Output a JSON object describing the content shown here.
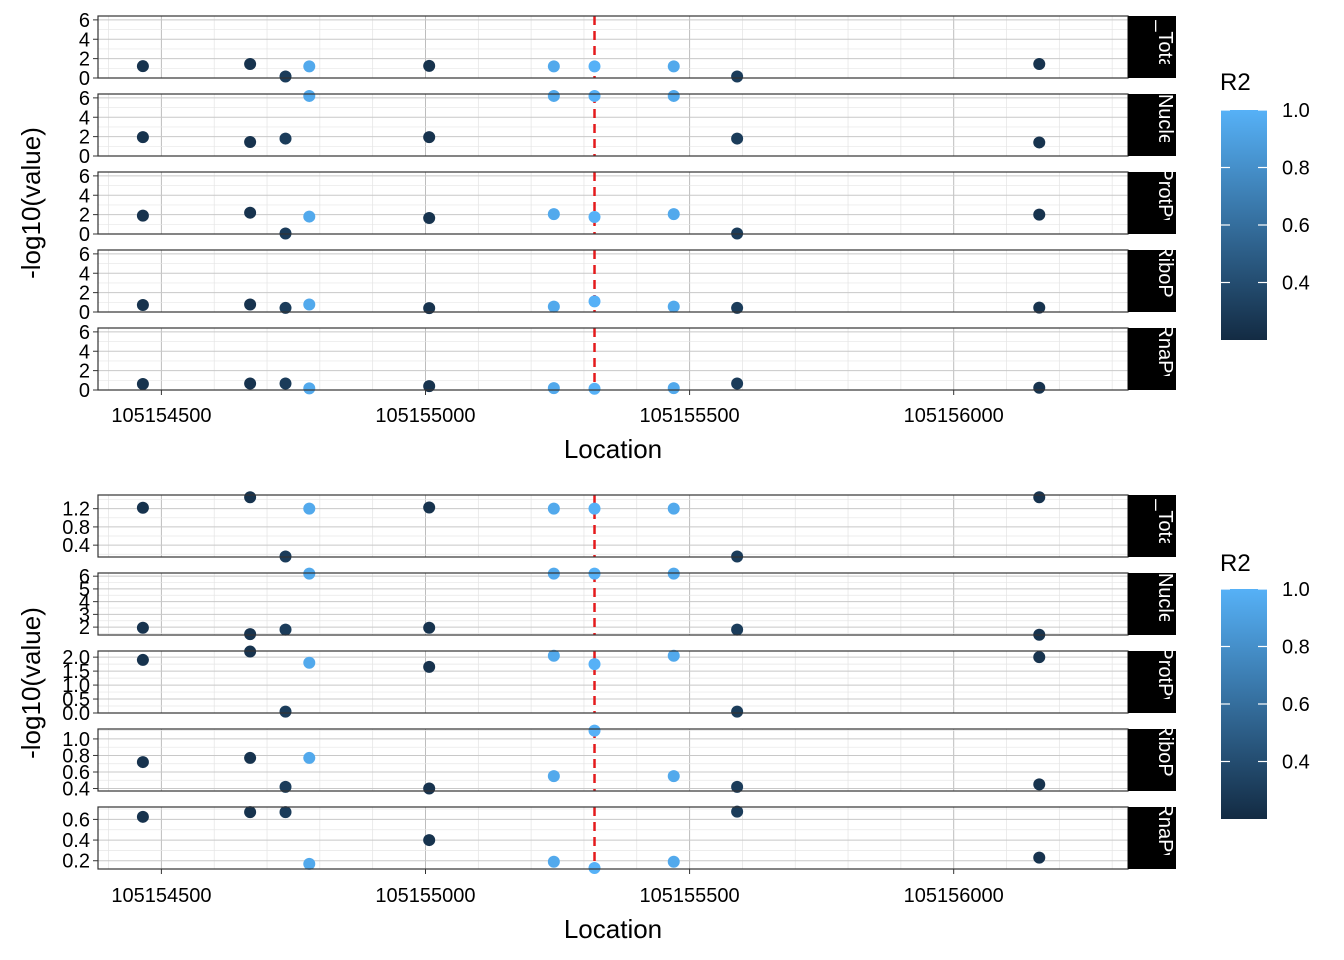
{
  "chart_data": [
    {
      "type": "scatter",
      "facet_by": "trait",
      "xlabel": "Location",
      "ylabel": "-log10(value)",
      "x_ticks": [
        105154500,
        105155000,
        105155500,
        105156000
      ],
      "x_tick_labels": [
        "105154500",
        "105155000",
        "105155500",
        "105156000"
      ],
      "xlim": [
        105154380,
        105156330
      ],
      "vline": {
        "x": 105155320,
        "color": "#e41a1c",
        "style": "dashed"
      },
      "color_scale": {
        "title": "R2",
        "low_color": "#132b43",
        "high_color": "#56b1f7",
        "limits": [
          0.2,
          1.0
        ],
        "breaks": [
          0.4,
          0.6,
          0.8,
          1.0
        ],
        "break_labels": [
          "0.4",
          "0.6",
          "0.8",
          "1.0"
        ]
      },
      "panels": [
        {
          "strip": "_Total",
          "ylim": [
            0,
            6.4
          ],
          "y_ticks": [
            0,
            2,
            4,
            6
          ],
          "y_tick_labels": [
            "0",
            "2",
            "4",
            "6"
          ],
          "points": [
            {
              "x": 105154465,
              "y": 1.22,
              "r2": 0.25
            },
            {
              "x": 105154668,
              "y": 1.45,
              "r2": 0.25
            },
            {
              "x": 105154735,
              "y": 0.15,
              "r2": 0.3
            },
            {
              "x": 105154780,
              "y": 1.2,
              "r2": 0.95
            },
            {
              "x": 105155007,
              "y": 1.25,
              "r2": 0.25
            },
            {
              "x": 105155243,
              "y": 1.2,
              "r2": 0.95
            },
            {
              "x": 105155320,
              "y": 1.2,
              "r2": 1.0
            },
            {
              "x": 105155470,
              "y": 1.2,
              "r2": 0.95
            },
            {
              "x": 105155590,
              "y": 0.15,
              "r2": 0.3
            },
            {
              "x": 105156162,
              "y": 1.45,
              "r2": 0.25
            }
          ]
        },
        {
          "strip": "Nuclea",
          "ylim": [
            0,
            6.4
          ],
          "y_ticks": [
            0,
            2,
            4,
            6
          ],
          "y_tick_labels": [
            "0",
            "2",
            "4",
            "6"
          ],
          "points": [
            {
              "x": 105154465,
              "y": 1.95,
              "r2": 0.25
            },
            {
              "x": 105154668,
              "y": 1.45,
              "r2": 0.25
            },
            {
              "x": 105154735,
              "y": 1.8,
              "r2": 0.3
            },
            {
              "x": 105154780,
              "y": 6.2,
              "r2": 0.95
            },
            {
              "x": 105155007,
              "y": 1.95,
              "r2": 0.25
            },
            {
              "x": 105155243,
              "y": 6.2,
              "r2": 0.95
            },
            {
              "x": 105155320,
              "y": 6.2,
              "r2": 1.0
            },
            {
              "x": 105155470,
              "y": 6.2,
              "r2": 0.95
            },
            {
              "x": 105155590,
              "y": 1.8,
              "r2": 0.3
            },
            {
              "x": 105156162,
              "y": 1.4,
              "r2": 0.25
            }
          ]
        },
        {
          "strip": "ProtPva",
          "ylim": [
            0,
            6.4
          ],
          "y_ticks": [
            0,
            2,
            4,
            6
          ],
          "y_tick_labels": [
            "0",
            "2",
            "4",
            "6"
          ],
          "points": [
            {
              "x": 105154465,
              "y": 1.9,
              "r2": 0.25
            },
            {
              "x": 105154668,
              "y": 2.2,
              "r2": 0.25
            },
            {
              "x": 105154735,
              "y": 0.05,
              "r2": 0.3
            },
            {
              "x": 105154780,
              "y": 1.8,
              "r2": 0.95
            },
            {
              "x": 105155007,
              "y": 1.65,
              "r2": 0.25
            },
            {
              "x": 105155243,
              "y": 2.05,
              "r2": 0.95
            },
            {
              "x": 105155320,
              "y": 1.75,
              "r2": 1.0
            },
            {
              "x": 105155470,
              "y": 2.05,
              "r2": 0.95
            },
            {
              "x": 105155590,
              "y": 0.05,
              "r2": 0.3
            },
            {
              "x": 105156162,
              "y": 2.0,
              "r2": 0.25
            }
          ]
        },
        {
          "strip": "RiboPva",
          "ylim": [
            0,
            6.4
          ],
          "y_ticks": [
            0,
            2,
            4,
            6
          ],
          "y_tick_labels": [
            "0",
            "2",
            "4",
            "6"
          ],
          "points": [
            {
              "x": 105154465,
              "y": 0.72,
              "r2": 0.25
            },
            {
              "x": 105154668,
              "y": 0.77,
              "r2": 0.25
            },
            {
              "x": 105154735,
              "y": 0.42,
              "r2": 0.3
            },
            {
              "x": 105154780,
              "y": 0.77,
              "r2": 0.95
            },
            {
              "x": 105155007,
              "y": 0.4,
              "r2": 0.25
            },
            {
              "x": 105155243,
              "y": 0.55,
              "r2": 0.95
            },
            {
              "x": 105155320,
              "y": 1.1,
              "r2": 1.0
            },
            {
              "x": 105155470,
              "y": 0.55,
              "r2": 0.95
            },
            {
              "x": 105155590,
              "y": 0.42,
              "r2": 0.3
            },
            {
              "x": 105156162,
              "y": 0.45,
              "r2": 0.25
            }
          ]
        },
        {
          "strip": "RnaPva",
          "ylim": [
            0,
            6.4
          ],
          "y_ticks": [
            0,
            2,
            4,
            6
          ],
          "y_tick_labels": [
            "0",
            "2",
            "4",
            "6"
          ],
          "points": [
            {
              "x": 105154465,
              "y": 0.62,
              "r2": 0.25
            },
            {
              "x": 105154668,
              "y": 0.67,
              "r2": 0.25
            },
            {
              "x": 105154735,
              "y": 0.67,
              "r2": 0.3
            },
            {
              "x": 105154780,
              "y": 0.17,
              "r2": 0.95
            },
            {
              "x": 105155007,
              "y": 0.4,
              "r2": 0.25
            },
            {
              "x": 105155243,
              "y": 0.19,
              "r2": 0.95
            },
            {
              "x": 105155320,
              "y": 0.13,
              "r2": 1.0
            },
            {
              "x": 105155470,
              "y": 0.19,
              "r2": 0.95
            },
            {
              "x": 105155590,
              "y": 0.67,
              "r2": 0.3
            },
            {
              "x": 105156162,
              "y": 0.23,
              "r2": 0.25
            }
          ]
        }
      ]
    },
    {
      "type": "scatter",
      "facet_by": "trait",
      "xlabel": "Location",
      "ylabel": "-log10(value)",
      "x_ticks": [
        105154500,
        105155000,
        105155500,
        105156000
      ],
      "x_tick_labels": [
        "105154500",
        "105155000",
        "105155500",
        "105156000"
      ],
      "xlim": [
        105154380,
        105156330
      ],
      "vline": {
        "x": 105155320,
        "color": "#e41a1c",
        "style": "dashed"
      },
      "color_scale": {
        "title": "R2",
        "low_color": "#132b43",
        "high_color": "#56b1f7",
        "limits": [
          0.2,
          1.0
        ],
        "breaks": [
          0.4,
          0.6,
          0.8,
          1.0
        ],
        "break_labels": [
          "0.4",
          "0.6",
          "0.8",
          "1.0"
        ]
      },
      "panels": [
        {
          "strip": "_Total",
          "ylim": [
            0.14,
            1.5
          ],
          "y_ticks": [
            0.4,
            0.8,
            1.2
          ],
          "y_tick_labels": [
            "0.4",
            "0.8",
            "1.2"
          ],
          "points": [
            {
              "x": 105154465,
              "y": 1.22,
              "r2": 0.25
            },
            {
              "x": 105154668,
              "y": 1.45,
              "r2": 0.25
            },
            {
              "x": 105154735,
              "y": 0.15,
              "r2": 0.3
            },
            {
              "x": 105154780,
              "y": 1.2,
              "r2": 0.95
            },
            {
              "x": 105155007,
              "y": 1.225,
              "r2": 0.25
            },
            {
              "x": 105155243,
              "y": 1.2,
              "r2": 0.95
            },
            {
              "x": 105155320,
              "y": 1.2,
              "r2": 1.0
            },
            {
              "x": 105155470,
              "y": 1.2,
              "r2": 0.95
            },
            {
              "x": 105155590,
              "y": 0.15,
              "r2": 0.3
            },
            {
              "x": 105156162,
              "y": 1.45,
              "r2": 0.25
            }
          ]
        },
        {
          "strip": "Nuclea",
          "ylim": [
            1.38,
            6.25
          ],
          "y_ticks": [
            2,
            3,
            4,
            5,
            6
          ],
          "y_tick_labels": [
            "2",
            "3",
            "4",
            "5",
            "6"
          ],
          "points": [
            {
              "x": 105154465,
              "y": 1.95,
              "r2": 0.25
            },
            {
              "x": 105154668,
              "y": 1.45,
              "r2": 0.25
            },
            {
              "x": 105154735,
              "y": 1.8,
              "r2": 0.3
            },
            {
              "x": 105154780,
              "y": 6.2,
              "r2": 0.95
            },
            {
              "x": 105155007,
              "y": 1.95,
              "r2": 0.25
            },
            {
              "x": 105155243,
              "y": 6.2,
              "r2": 0.95
            },
            {
              "x": 105155320,
              "y": 6.2,
              "r2": 1.0
            },
            {
              "x": 105155470,
              "y": 6.2,
              "r2": 0.95
            },
            {
              "x": 105155590,
              "y": 1.8,
              "r2": 0.3
            },
            {
              "x": 105156162,
              "y": 1.4,
              "r2": 0.25
            }
          ]
        },
        {
          "strip": "ProtPva",
          "ylim": [
            0.0,
            2.22
          ],
          "y_ticks": [
            0.0,
            0.5,
            1.0,
            1.5,
            2.0
          ],
          "y_tick_labels": [
            "0.0",
            "0.5",
            "1.0",
            "1.5",
            "2.0"
          ],
          "points": [
            {
              "x": 105154465,
              "y": 1.9,
              "r2": 0.25
            },
            {
              "x": 105154668,
              "y": 2.2,
              "r2": 0.25
            },
            {
              "x": 105154735,
              "y": 0.05,
              "r2": 0.3
            },
            {
              "x": 105154780,
              "y": 1.8,
              "r2": 0.95
            },
            {
              "x": 105155007,
              "y": 1.65,
              "r2": 0.25
            },
            {
              "x": 105155243,
              "y": 2.05,
              "r2": 0.95
            },
            {
              "x": 105155320,
              "y": 1.75,
              "r2": 1.0
            },
            {
              "x": 105155470,
              "y": 2.05,
              "r2": 0.95
            },
            {
              "x": 105155590,
              "y": 0.05,
              "r2": 0.3
            },
            {
              "x": 105156162,
              "y": 2.0,
              "r2": 0.25
            }
          ]
        },
        {
          "strip": "RiboPva",
          "ylim": [
            0.37,
            1.12
          ],
          "y_ticks": [
            0.4,
            0.6,
            0.8,
            1.0
          ],
          "y_tick_labels": [
            "0.4",
            "0.6",
            "0.8",
            "1.0"
          ],
          "points": [
            {
              "x": 105154465,
              "y": 0.72,
              "r2": 0.25
            },
            {
              "x": 105154668,
              "y": 0.77,
              "r2": 0.25
            },
            {
              "x": 105154735,
              "y": 0.42,
              "r2": 0.3
            },
            {
              "x": 105154780,
              "y": 0.77,
              "r2": 0.95
            },
            {
              "x": 105155007,
              "y": 0.4,
              "r2": 0.25
            },
            {
              "x": 105155243,
              "y": 0.55,
              "r2": 0.95
            },
            {
              "x": 105155320,
              "y": 1.1,
              "r2": 1.0
            },
            {
              "x": 105155470,
              "y": 0.55,
              "r2": 0.95
            },
            {
              "x": 105155590,
              "y": 0.42,
              "r2": 0.3
            },
            {
              "x": 105156162,
              "y": 0.45,
              "r2": 0.25
            }
          ]
        },
        {
          "strip": "RnaPva",
          "ylim": [
            0.12,
            0.72
          ],
          "y_ticks": [
            0.2,
            0.4,
            0.6
          ],
          "y_tick_labels": [
            "0.2",
            "0.4",
            "0.6"
          ],
          "points": [
            {
              "x": 105154465,
              "y": 0.625,
              "r2": 0.25
            },
            {
              "x": 105154668,
              "y": 0.67,
              "r2": 0.25
            },
            {
              "x": 105154735,
              "y": 0.67,
              "r2": 0.3
            },
            {
              "x": 105154780,
              "y": 0.17,
              "r2": 0.95
            },
            {
              "x": 105155007,
              "y": 0.4,
              "r2": 0.25
            },
            {
              "x": 105155243,
              "y": 0.19,
              "r2": 0.95
            },
            {
              "x": 105155320,
              "y": 0.13,
              "r2": 1.0
            },
            {
              "x": 105155470,
              "y": 0.19,
              "r2": 0.95
            },
            {
              "x": 105155590,
              "y": 0.675,
              "r2": 0.3
            },
            {
              "x": 105156162,
              "y": 0.23,
              "r2": 0.25
            }
          ]
        }
      ]
    }
  ]
}
